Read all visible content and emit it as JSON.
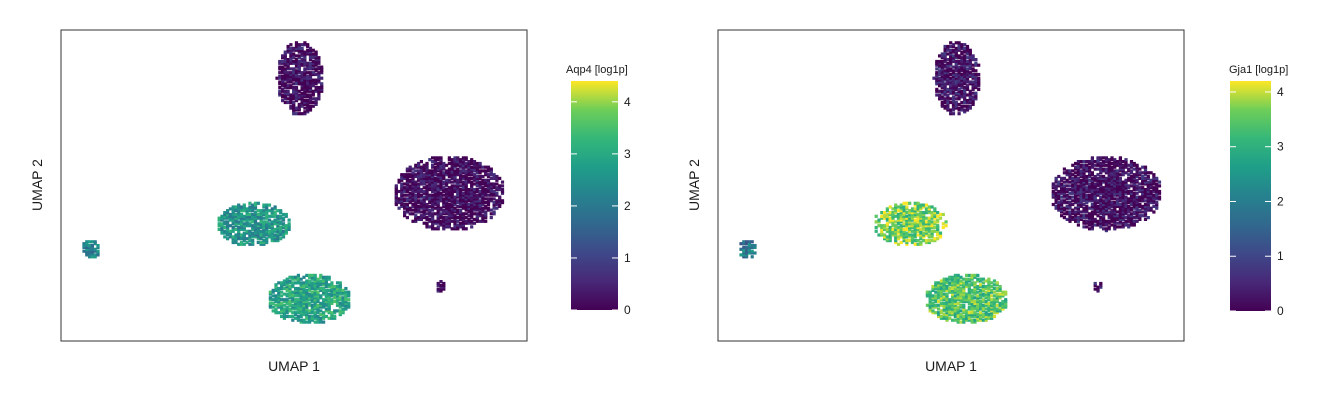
{
  "chart_data": [
    {
      "type": "scatter",
      "title": "",
      "xlabel": "UMAP 1",
      "ylabel": "UMAP 2",
      "xlim": [
        0,
        1
      ],
      "ylim": [
        0,
        1
      ],
      "grid": false,
      "legend": "colorbar-right",
      "colorbar": {
        "label": "Aqp4 [log1p]",
        "range": [
          0,
          4.4
        ],
        "ticks": [
          0,
          1,
          2,
          3,
          4
        ],
        "tick_labels": [
          "0",
          "1",
          "2",
          "3",
          "4"
        ],
        "colormap": "viridis"
      },
      "clusters": [
        {
          "name": "upper",
          "center": [
            0.51,
            0.85
          ],
          "spread": [
            0.05,
            0.12
          ],
          "level": 0.15
        },
        {
          "name": "right",
          "center": [
            0.83,
            0.48
          ],
          "spread": [
            0.12,
            0.12
          ],
          "level": 0.1
        },
        {
          "name": "middle",
          "center": [
            0.41,
            0.38
          ],
          "spread": [
            0.08,
            0.07
          ],
          "level": 2.6
        },
        {
          "name": "lower",
          "center": [
            0.53,
            0.14
          ],
          "spread": [
            0.09,
            0.08
          ],
          "level": 2.9
        },
        {
          "name": "small-left",
          "center": [
            0.06,
            0.3
          ],
          "spread": [
            0.02,
            0.03
          ],
          "level": 2.2
        },
        {
          "name": "dot",
          "center": [
            0.81,
            0.18
          ],
          "spread": [
            0.01,
            0.02
          ],
          "level": 0.2
        }
      ]
    },
    {
      "type": "scatter",
      "title": "",
      "xlabel": "UMAP 1",
      "ylabel": "UMAP 2",
      "xlim": [
        0,
        1
      ],
      "ylim": [
        0,
        1
      ],
      "grid": false,
      "legend": "colorbar-right",
      "colorbar": {
        "label": "Gja1 [log1p]",
        "range": [
          0,
          4.2
        ],
        "ticks": [
          0,
          1,
          2,
          3,
          4
        ],
        "tick_labels": [
          "0",
          "1",
          "2",
          "3",
          "4"
        ],
        "colormap": "viridis"
      },
      "clusters": [
        {
          "name": "upper",
          "center": [
            0.51,
            0.85
          ],
          "spread": [
            0.05,
            0.12
          ],
          "level": 0.2
        },
        {
          "name": "right",
          "center": [
            0.83,
            0.48
          ],
          "spread": [
            0.12,
            0.12
          ],
          "level": 0.15
        },
        {
          "name": "middle",
          "center": [
            0.41,
            0.38
          ],
          "spread": [
            0.08,
            0.07
          ],
          "level": 3.6
        },
        {
          "name": "lower",
          "center": [
            0.53,
            0.14
          ],
          "spread": [
            0.09,
            0.08
          ],
          "level": 3.4
        },
        {
          "name": "small-left",
          "center": [
            0.06,
            0.3
          ],
          "spread": [
            0.02,
            0.03
          ],
          "level": 1.9
        },
        {
          "name": "dot",
          "center": [
            0.81,
            0.18
          ],
          "spread": [
            0.01,
            0.02
          ],
          "level": 0.2
        }
      ]
    }
  ]
}
